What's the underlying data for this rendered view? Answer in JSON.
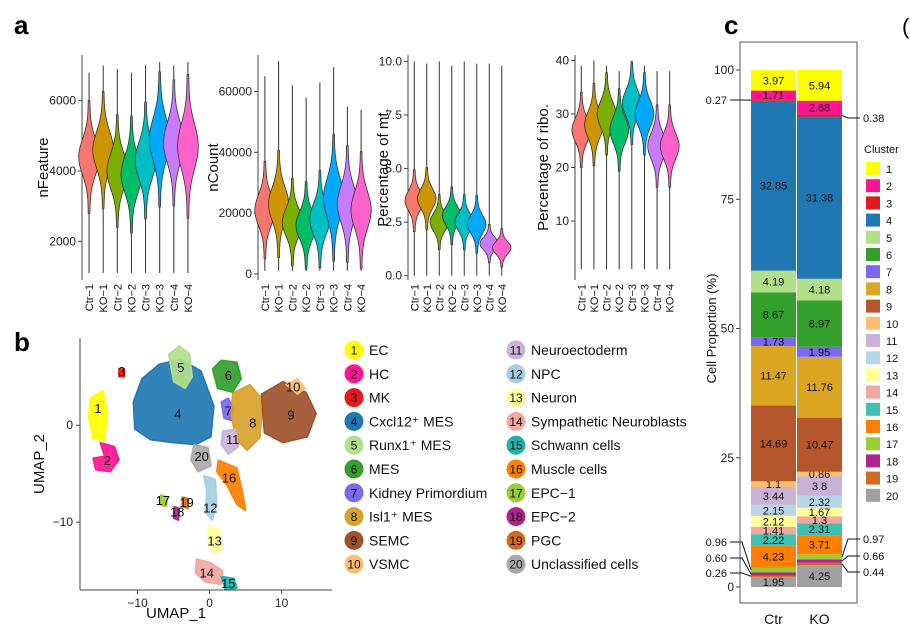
{
  "panels": {
    "a": "a",
    "b": "b",
    "c": "c",
    "edge": "("
  },
  "violin": {
    "samples": [
      "Ctr−1",
      "KO−1",
      "Ctr−2",
      "KO−2",
      "Ctr−3",
      "KO−3",
      "Ctr−4",
      "KO−4"
    ],
    "colors": [
      "#F8766D",
      "#CD9600",
      "#7CAE00",
      "#00BE67",
      "#00BFC4",
      "#00A9FF",
      "#C77CFF",
      "#FF61CC"
    ],
    "plots": [
      {
        "ylabel": "nFeature",
        "ymin": 900,
        "ymax": 7300,
        "ticks": [
          2000,
          4000,
          6000
        ],
        "tick_labels": [
          "2000",
          "4000",
          "6000"
        ],
        "median": [
          4400,
          4600,
          4000,
          3900,
          4300,
          4900,
          4800,
          4700
        ],
        "spread": [
          500,
          520,
          500,
          520,
          520,
          600,
          560,
          640
        ],
        "top": [
          6800,
          7000,
          6900,
          6800,
          7000,
          7100,
          7000,
          7100
        ],
        "bottom": [
          1100,
          1100,
          1100,
          1100,
          1100,
          1100,
          1100,
          1100
        ]
      },
      {
        "ylabel": "nCount",
        "ymin": -2000,
        "ymax": 72000,
        "ticks": [
          0,
          20000,
          40000,
          60000
        ],
        "tick_labels": [
          "0",
          "20000",
          "40000",
          "60000"
        ],
        "median": [
          21000,
          23000,
          17000,
          16000,
          18000,
          25000,
          23000,
          21000
        ],
        "spread": [
          5000,
          5500,
          4500,
          4500,
          5000,
          6500,
          6000,
          6000
        ],
        "top": [
          65000,
          70000,
          62000,
          58000,
          63000,
          68000,
          55000,
          54000
        ],
        "bottom": [
          1000,
          1000,
          1000,
          1000,
          1000,
          1000,
          1000,
          1000
        ]
      },
      {
        "ylabel": "Percentage of mt.",
        "ymin": -0.2,
        "ymax": 10.3,
        "ticks": [
          0.0,
          2.5,
          5.0,
          7.5,
          10.0
        ],
        "tick_labels": [
          "0.0",
          "2.5",
          "5.0",
          "7.5",
          "10.0"
        ],
        "median": [
          3.5,
          3.6,
          2.5,
          2.8,
          2.5,
          2.4,
          1.5,
          1.3
        ],
        "spread": [
          0.45,
          0.45,
          0.4,
          0.42,
          0.4,
          0.42,
          0.28,
          0.28
        ],
        "top": [
          10.0,
          9.9,
          10.0,
          9.8,
          10.0,
          9.9,
          9.9,
          9.8
        ],
        "bottom": [
          0.0,
          0.0,
          0.0,
          0.0,
          0.0,
          0.0,
          0.0,
          0.0
        ]
      },
      {
        "ylabel": "Percentage of ribo.",
        "ymin": -1,
        "ymax": 41,
        "ticks": [
          10,
          20,
          30,
          40
        ],
        "tick_labels": [
          "10",
          "20",
          "30",
          "40"
        ],
        "median": [
          27,
          28,
          30,
          27,
          32,
          30,
          24,
          24
        ],
        "spread": [
          2.2,
          2.4,
          2.4,
          2.4,
          2.4,
          2.4,
          2.4,
          2.4
        ],
        "top": [
          39,
          40,
          39,
          38,
          40,
          39,
          38,
          38
        ],
        "bottom": [
          1,
          1,
          1,
          1,
          1,
          1,
          1,
          1
        ]
      }
    ]
  },
  "umap": {
    "xlabel": "UMAP_1",
    "ylabel": "UMAP_2",
    "xticks": [
      -10,
      0,
      10
    ],
    "xtick_labels": [
      "−10",
      "0",
      "10"
    ],
    "yticks": [
      0,
      -10
    ],
    "ytick_labels": [
      "0",
      "−10"
    ],
    "xlim": [
      -18,
      17
    ],
    "ylim": [
      -17,
      9
    ],
    "cluster_labels": [
      {
        "id": "1",
        "x": -15.5,
        "y": 1.7,
        "color": "#FFFF00"
      },
      {
        "id": "2",
        "x": -14.2,
        "y": -3.7,
        "color": "#FF1493"
      },
      {
        "id": "3",
        "x": -12.2,
        "y": 5.5,
        "color": "#E31A1C"
      },
      {
        "id": "4",
        "x": -4.4,
        "y": 1.1,
        "color": "#1F78B4"
      },
      {
        "id": "5",
        "x": -4.0,
        "y": 5.9,
        "color": "#B2DF8A"
      },
      {
        "id": "6",
        "x": 2.6,
        "y": 5.1,
        "color": "#33A02C"
      },
      {
        "id": "7",
        "x": 2.6,
        "y": 1.4,
        "color": "#7B68EE"
      },
      {
        "id": "8",
        "x": 6.0,
        "y": 0.2,
        "color": "#D8A22A"
      },
      {
        "id": "9",
        "x": 11.3,
        "y": 1.0,
        "color": "#A0522D"
      },
      {
        "id": "10",
        "x": 11.6,
        "y": 3.9,
        "color": "#FDBF6F"
      },
      {
        "id": "11",
        "x": 3.2,
        "y": -1.5,
        "color": "#C9B3D8"
      },
      {
        "id": "12",
        "x": 0.1,
        "y": -8.6,
        "color": "#A6CEE3"
      },
      {
        "id": "13",
        "x": 0.7,
        "y": -12.0,
        "color": "#FFFF99"
      },
      {
        "id": "14",
        "x": -0.4,
        "y": -15.3,
        "color": "#F4A6A0"
      },
      {
        "id": "15",
        "x": 2.6,
        "y": -16.4,
        "color": "#20B2AA"
      },
      {
        "id": "16",
        "x": 2.7,
        "y": -5.5,
        "color": "#FF7F00"
      },
      {
        "id": "17",
        "x": -6.5,
        "y": -7.8,
        "color": "#9ACD32"
      },
      {
        "id": "18",
        "x": -4.5,
        "y": -9.0,
        "color": "#B0228C"
      },
      {
        "id": "19",
        "x": -3.2,
        "y": -8.0,
        "color": "#D2691E"
      },
      {
        "id": "20",
        "x": -1.1,
        "y": -3.3,
        "color": "#A9A9A9"
      }
    ]
  },
  "legend_b": [
    {
      "id": "1",
      "label": "EC",
      "color": "#FFFF00"
    },
    {
      "id": "2",
      "label": "HC",
      "color": "#FF1493"
    },
    {
      "id": "3",
      "label": "MK",
      "color": "#E31A1C"
    },
    {
      "id": "4",
      "label": "Cxcl12⁺ MES",
      "color": "#1F78B4"
    },
    {
      "id": "5",
      "label": "Runx1⁺ MES",
      "color": "#B2DF8A"
    },
    {
      "id": "6",
      "label": "MES",
      "color": "#33A02C"
    },
    {
      "id": "7",
      "label": "Kidney Primordium",
      "color": "#7B68EE"
    },
    {
      "id": "8",
      "label": "Isl1⁺ MES",
      "color": "#D8A22A"
    },
    {
      "id": "9",
      "label": "SEMC",
      "color": "#A0522D"
    },
    {
      "id": "10",
      "label": "VSMC",
      "color": "#FDBF6F"
    },
    {
      "id": "11",
      "label": "Neuroectoderm",
      "color": "#C9B3D8"
    },
    {
      "id": "12",
      "label": "NPC",
      "color": "#A6CEE3"
    },
    {
      "id": "13",
      "label": "Neuron",
      "color": "#FFFF99"
    },
    {
      "id": "14",
      "label": "Sympathetic Neuroblasts",
      "color": "#F4A6A0"
    },
    {
      "id": "15",
      "label": "Schwann cells",
      "color": "#20B2AA"
    },
    {
      "id": "16",
      "label": "Muscle cells",
      "color": "#FF7F00"
    },
    {
      "id": "17",
      "label": "EPC−1",
      "color": "#9ACD32"
    },
    {
      "id": "18",
      "label": "EPC−2",
      "color": "#B0228C"
    },
    {
      "id": "19",
      "label": "PGC",
      "color": "#D2691E"
    },
    {
      "id": "20",
      "label": "Unclassified cells",
      "color": "#A9A9A9"
    }
  ],
  "chart_data": {
    "type": "bar",
    "subtype": "stacked-100",
    "categories": [
      "Ctr",
      "KO"
    ],
    "ylabel": "Cell Proportion (%)",
    "ylim": [
      0,
      100
    ],
    "yticks": [
      0,
      25,
      50,
      75,
      100
    ],
    "ytick_labels": [
      "0",
      "25",
      "50",
      "75",
      "100"
    ],
    "legend_title": "Cluster",
    "legend_position": "right",
    "stack_order_bottom_to_top": [
      "20",
      "19",
      "18",
      "17",
      "16",
      "15",
      "14",
      "13",
      "12",
      "11",
      "10",
      "9",
      "8",
      "7",
      "6",
      "5",
      "4",
      "3",
      "2",
      "1"
    ],
    "series": [
      {
        "name": "1",
        "color": "#FFFF00",
        "values": [
          3.97,
          5.94
        ],
        "labels": [
          "3.97",
          "5.94"
        ]
      },
      {
        "name": "2",
        "color": "#FF1493",
        "values": [
          1.71,
          2.68
        ],
        "labels": [
          "1.71",
          "2.68"
        ]
      },
      {
        "name": "3",
        "color": "#E31A1C",
        "values": [
          0.27,
          0.38
        ],
        "labels": [
          "",
          ""
        ]
      },
      {
        "name": "4",
        "color": "#1F78B4",
        "values": [
          32.85,
          31.38
        ],
        "labels": [
          "32.85",
          "31.38"
        ]
      },
      {
        "name": "5",
        "color": "#B2DF8A",
        "values": [
          4.19,
          4.18
        ],
        "labels": [
          "4.19",
          "4.18"
        ]
      },
      {
        "name": "6",
        "color": "#33A02C",
        "values": [
          8.67,
          8.97
        ],
        "labels": [
          "8.67",
          "8.97"
        ]
      },
      {
        "name": "7",
        "color": "#7B68EE",
        "values": [
          1.73,
          1.95
        ],
        "labels": [
          "1.73",
          "1.95"
        ]
      },
      {
        "name": "8",
        "color": "#DAA520",
        "values": [
          11.47,
          11.76
        ],
        "labels": [
          "11.47",
          "11.76"
        ]
      },
      {
        "name": "9",
        "color": "#B5562C",
        "values": [
          14.69,
          10.47
        ],
        "labels": [
          "14.69",
          "10.47"
        ]
      },
      {
        "name": "10",
        "color": "#FDBF6F",
        "values": [
          1.1,
          0.86
        ],
        "labels": [
          "1.1",
          "0.86"
        ]
      },
      {
        "name": "11",
        "color": "#CAB2D6",
        "values": [
          3.44,
          3.8
        ],
        "labels": [
          "3.44",
          "3.8"
        ]
      },
      {
        "name": "12",
        "color": "#B7D7E8",
        "values": [
          2.15,
          2.32
        ],
        "labels": [
          "2.15",
          "2.32"
        ]
      },
      {
        "name": "13",
        "color": "#FFFF99",
        "values": [
          2.12,
          1.67
        ],
        "labels": [
          "2.12",
          "1.67"
        ]
      },
      {
        "name": "14",
        "color": "#F4A6A0",
        "values": [
          1.41,
          1.3
        ],
        "labels": [
          "1.41",
          "1.3"
        ]
      },
      {
        "name": "15",
        "color": "#40C0B0",
        "values": [
          2.22,
          2.31
        ],
        "labels": [
          "2.22",
          "2.31"
        ]
      },
      {
        "name": "16",
        "color": "#FF7F00",
        "values": [
          4.23,
          3.71
        ],
        "labels": [
          "4.23",
          "3.71"
        ]
      },
      {
        "name": "17",
        "color": "#9ACD32",
        "values": [
          0.96,
          0.97
        ],
        "labels": [
          "",
          ""
        ]
      },
      {
        "name": "18",
        "color": "#B0228C",
        "values": [
          0.6,
          0.66
        ],
        "labels": [
          "",
          ""
        ]
      },
      {
        "name": "19",
        "color": "#D2691E",
        "values": [
          0.26,
          0.44
        ],
        "labels": [
          "",
          ""
        ]
      },
      {
        "name": "20",
        "color": "#A0A0A0",
        "values": [
          1.95,
          4.25
        ],
        "labels": [
          "1.95",
          "4.25"
        ]
      }
    ],
    "side_annotations": {
      "left": [
        {
          "text": "0.27",
          "series": "3"
        },
        {
          "text": "0.96",
          "series": "17"
        },
        {
          "text": "0.60",
          "series": "18"
        },
        {
          "text": "0.26",
          "series": "19"
        }
      ],
      "right": [
        {
          "text": "0.38",
          "series": "3"
        },
        {
          "text": "0.97",
          "series": "17"
        },
        {
          "text": "0.66",
          "series": "18"
        },
        {
          "text": "0.44",
          "series": "19"
        }
      ]
    }
  }
}
